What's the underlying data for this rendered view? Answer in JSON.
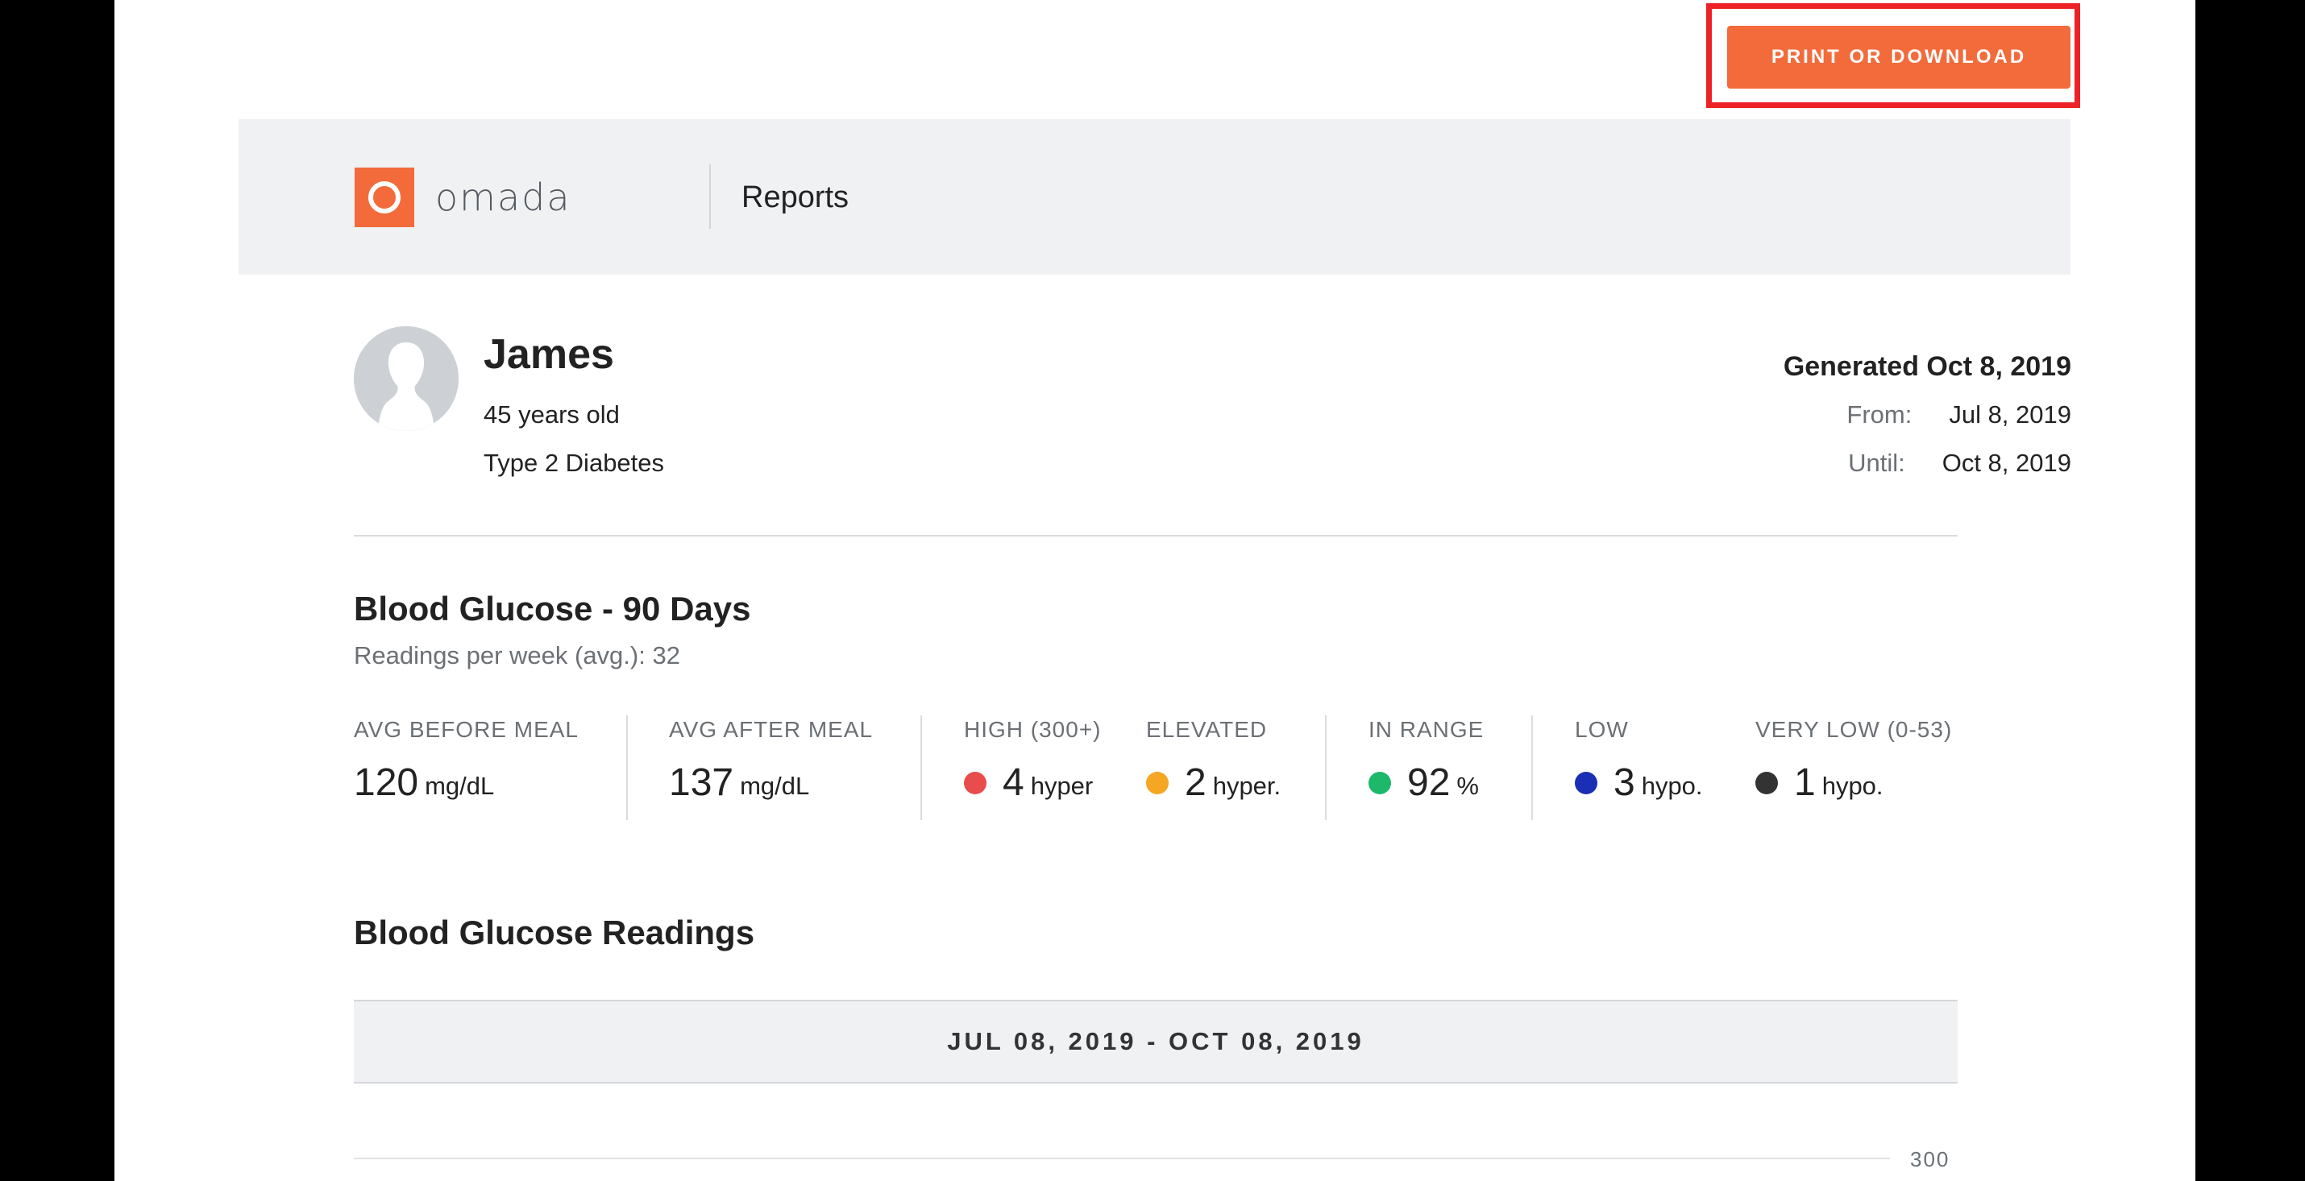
{
  "toolbar": {
    "print_label": "PRINT OR DOWNLOAD"
  },
  "header": {
    "logo_text": "omada",
    "title": "Reports"
  },
  "patient": {
    "name": "James",
    "age": "45 years old",
    "condition": "Type 2 Diabetes"
  },
  "report": {
    "generated": "Generated Oct 8, 2019",
    "from_label": "From:",
    "from_value": "Jul 8, 2019",
    "until_label": "Until:",
    "until_value": "Oct 8, 2019"
  },
  "glucose": {
    "title": "Blood Glucose - 90 Days",
    "subtitle": "Readings per week (avg.): 32",
    "stats": [
      {
        "label": "AVG BEFORE MEAL",
        "value": "120",
        "unit": "mg/dL"
      },
      {
        "label": "AVG AFTER MEAL",
        "value": "137",
        "unit": "mg/dL"
      },
      {
        "label": "HIGH (300+)",
        "value": "4",
        "unit": "hyper",
        "color": "#e84c4c"
      },
      {
        "label": "ELEVATED",
        "value": "2",
        "unit": "hyper.",
        "color": "#f5a623"
      },
      {
        "label": "IN RANGE",
        "value": "92",
        "unit": "%",
        "color": "#1db86a"
      },
      {
        "label": "LOW",
        "value": "3",
        "unit": "hypo.",
        "color": "#1a2fb5"
      },
      {
        "label": "VERY LOW (0-53)",
        "value": "1",
        "unit": "hypo.",
        "color": "#333333"
      }
    ]
  },
  "readings": {
    "title": "Blood Glucose Readings",
    "range": "JUL 08, 2019 - OCT 08, 2019",
    "axis_tick": "300"
  },
  "colors": {
    "accent": "#f36b3b",
    "highlight": "#ec2226"
  }
}
